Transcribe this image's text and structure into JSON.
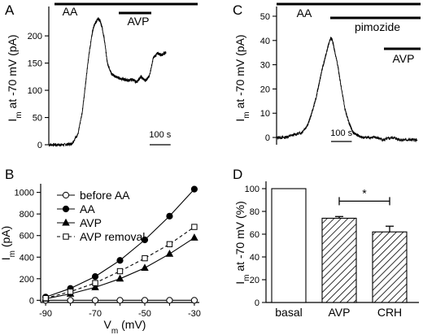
{
  "chart_data": [
    {
      "panel": "A",
      "type": "line",
      "ylabel_main": "I",
      "ylabel_sub": "m",
      "ylabel_rest": " at -70 mV (pA)",
      "yticks": [
        0,
        50,
        100,
        150,
        200
      ],
      "ylim": [
        0,
        245
      ],
      "xlim": [
        0,
        700
      ],
      "treatments": [
        {
          "label": "AA",
          "start": 0,
          "end": 700
        },
        {
          "label": "AVP",
          "start": 260,
          "end": 380
        }
      ],
      "scalebar_label": "100 s",
      "scalebar_seconds": 100,
      "series": [
        {
          "x": [
            0,
            40,
            80,
            110,
            140,
            160,
            175,
            190,
            205,
            215,
            225,
            235,
            245,
            255,
            265,
            280,
            300,
            320,
            340,
            360,
            380,
            400,
            420,
            440,
            460,
            480,
            500,
            520,
            540,
            560
          ],
          "y": [
            0,
            0,
            0,
            2,
            20,
            60,
            110,
            160,
            200,
            218,
            225,
            232,
            228,
            215,
            195,
            150,
            130,
            125,
            122,
            120,
            118,
            120,
            115,
            125,
            118,
            125,
            160,
            168,
            165,
            170
          ]
        }
      ]
    },
    {
      "panel": "B",
      "type": "line",
      "xlabel_main": "V",
      "xlabel_sub": "m",
      "xlabel_rest": " (mV)",
      "ylabel_main": "I",
      "ylabel_sub": "m",
      "ylabel_rest": " (pA)",
      "x": [
        -90,
        -80,
        -70,
        -60,
        -50,
        -40,
        -30
      ],
      "xticks": [
        -90,
        -70,
        -50,
        -30
      ],
      "yticks": [
        0,
        200,
        400,
        600,
        800,
        1000
      ],
      "xlim": [
        -92,
        -28
      ],
      "ylim": [
        -20,
        1080
      ],
      "series": [
        {
          "name": "before AA",
          "values": [
            0,
            0,
            0,
            0,
            0,
            0,
            0
          ],
          "marker": "open-circle",
          "dash": false
        },
        {
          "name": "AA",
          "values": [
            30,
            110,
            220,
            370,
            560,
            780,
            1030
          ],
          "marker": "filled-circle",
          "dash": false
        },
        {
          "name": "AVP",
          "values": [
            15,
            60,
            120,
            200,
            300,
            430,
            580
          ],
          "marker": "filled-triangle",
          "dash": false
        },
        {
          "name": "AVP removal",
          "values": [
            20,
            80,
            160,
            270,
            390,
            520,
            680
          ],
          "marker": "open-square",
          "dash": true
        }
      ]
    },
    {
      "panel": "C",
      "type": "line",
      "ylabel_main": "I",
      "ylabel_sub": "m",
      "ylabel_rest": " at -70 mV (pA)",
      "yticks": [
        0,
        10,
        20,
        30,
        40,
        50
      ],
      "ylim": [
        -3,
        52
      ],
      "xlim": [
        0,
        700
      ],
      "treatments": [
        {
          "label": "AA",
          "start": 0,
          "end": 700
        },
        {
          "label": "pimozide",
          "start": 250,
          "end": 700
        },
        {
          "label": "AVP",
          "start": 560,
          "end": 700
        }
      ],
      "scalebar_label": "100 s",
      "scalebar_seconds": 100,
      "series": [
        {
          "x": [
            0,
            40,
            80,
            120,
            150,
            170,
            190,
            205,
            220,
            235,
            250,
            262,
            270,
            280,
            295,
            310,
            330,
            350,
            370,
            390,
            410,
            440,
            480,
            520,
            560,
            600,
            640,
            680
          ],
          "y": [
            0,
            0,
            1,
            2,
            5,
            10,
            16,
            22,
            28,
            33,
            38,
            41,
            40,
            36,
            30,
            22,
            12,
            6,
            2,
            1,
            0,
            0,
            0,
            -1,
            0,
            -1,
            -1,
            -1
          ]
        }
      ]
    },
    {
      "panel": "D",
      "type": "bar",
      "categories": [
        "basal",
        "AVP",
        "CRH"
      ],
      "values": [
        100,
        74,
        62
      ],
      "errors": [
        0,
        1.5,
        5
      ],
      "hatched": [
        false,
        true,
        true
      ],
      "yticks": [
        0,
        20,
        40,
        60,
        80,
        100
      ],
      "ylim": [
        0,
        105
      ],
      "ylabel_main": "I",
      "ylabel_sub": "m",
      "ylabel_rest": " at -70 mV (%)",
      "significance": {
        "label": "*",
        "between": [
          "AVP",
          "CRH"
        ]
      }
    }
  ]
}
